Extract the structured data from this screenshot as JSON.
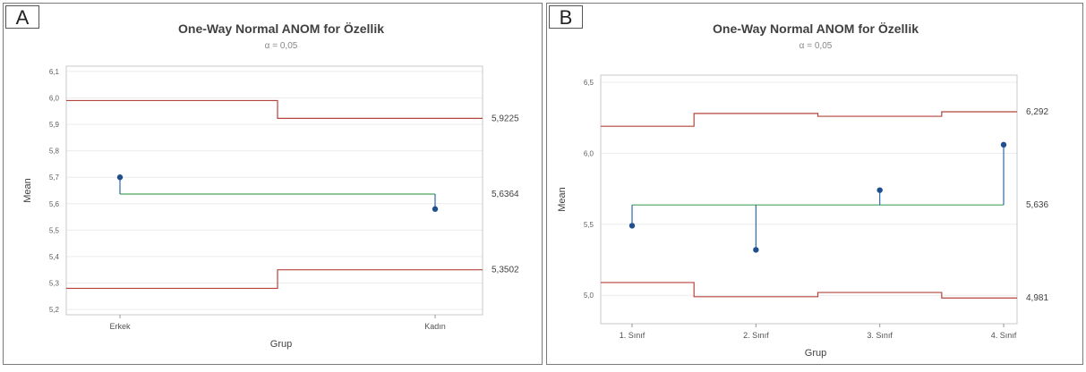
{
  "chart_data": [
    {
      "type": "anom",
      "panel_label": "A",
      "title": "One-Way Normal ANOM for Özellik",
      "subtitle": "α = 0,05",
      "xlabel": "Grup",
      "ylabel": "Mean",
      "categories": [
        "Erkek",
        "Kadın"
      ],
      "means": [
        5.7,
        5.58
      ],
      "center": 5.6364,
      "udl": [
        5.99,
        5.9225
      ],
      "ldl": [
        5.28,
        5.3502
      ],
      "ylim": [
        5.18,
        6.12
      ],
      "yticks": [
        5.2,
        5.3,
        5.4,
        5.5,
        5.6,
        5.7,
        5.8,
        5.9,
        6.0,
        6.1
      ],
      "ytick_labels": [
        "5,2",
        "5,3",
        "5,4",
        "5,5",
        "5,6",
        "5,7",
        "5,8",
        "5,9",
        "6,0",
        "6,1"
      ],
      "ref_labels": {
        "udl": "5,9225",
        "center": "5,6364",
        "ldl": "5,3502"
      },
      "grid": true
    },
    {
      "type": "anom",
      "panel_label": "B",
      "title": "One-Way Normal ANOM for Özellik",
      "subtitle": "α = 0,05",
      "xlabel": "Grup",
      "ylabel": "Mean",
      "categories": [
        "1. Sınıf",
        "2. Sınıf",
        "3. Sınıf",
        "4. Sınıf"
      ],
      "means": [
        5.49,
        5.32,
        5.74,
        6.06
      ],
      "center": 5.636,
      "udl": [
        6.19,
        6.28,
        6.26,
        6.292
      ],
      "ldl": [
        5.09,
        4.99,
        5.02,
        4.981
      ],
      "ylim": [
        4.8,
        6.55
      ],
      "yticks": [
        5.0,
        5.5,
        6.0,
        6.5
      ],
      "ytick_labels": [
        "5,0",
        "5,5",
        "6,0",
        "6,5"
      ],
      "ref_labels": {
        "udl": "6,292",
        "center": "5,636",
        "ldl": "4,981"
      },
      "grid": true
    }
  ],
  "colors": {
    "limit": "#b5443c",
    "center": "#4ca35a",
    "mean_line": "#2f6aa8",
    "point": "#1f4f8f",
    "grid": "#ececec",
    "frame": "#c8c8c8"
  }
}
